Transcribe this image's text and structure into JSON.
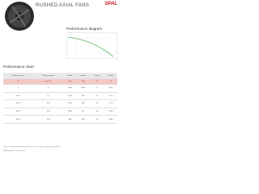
{
  "header": {
    "title": "RUSHED AXIAL FANS",
    "logo": "SPAL"
  },
  "sections": {
    "diagram_title": "Performance diagram",
    "chart_title": "Performance chart"
  },
  "table": {
    "headers": [
      "Static pressure",
      "Static pressure",
      "airflow",
      "airflow",
      "Current",
      "Power"
    ],
    "units": [
      "Pa",
      "mm H2O",
      "m3/h",
      "CFM",
      "A",
      "W"
    ],
    "rows": [
      [
        "0",
        "0",
        "1815",
        "1068",
        "7.1",
        "85.2"
      ],
      [
        "50.0",
        "5.1",
        "1578",
        "929",
        "7.6",
        "91.2"
      ],
      [
        "100.0",
        "10.2",
        "1326",
        "780",
        "8.1",
        "97.2"
      ],
      [
        "150.0",
        "15.3",
        "1040",
        "612",
        "8.6",
        "103.2"
      ],
      [
        "200.0",
        "20.4",
        "680",
        "400",
        "9.0",
        "108.0"
      ]
    ]
  },
  "footer": [
    "This is an automatically generated datasheet. Data are subject to change without notice.",
    "SPAL Automotive - www.spal.com"
  ]
}
